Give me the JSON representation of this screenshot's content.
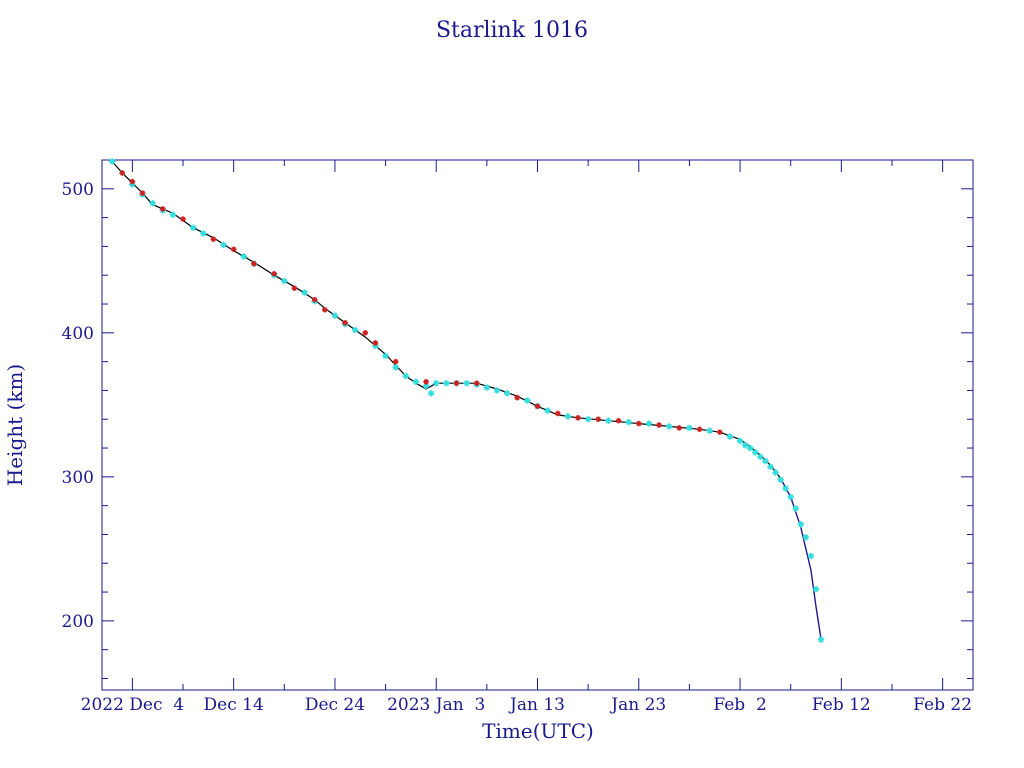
{
  "chart_data": {
    "type": "scatter",
    "title": "Starlink 1016",
    "xlabel": "Time(UTC)",
    "ylabel": "Height (km)",
    "x_axis": "dates",
    "xlim": [
      "2022-12-01",
      "2023-02-25"
    ],
    "ylim": [
      152,
      520
    ],
    "x_tick_labels": [
      {
        "date": "2022-12-04",
        "label": "2022 Dec  4"
      },
      {
        "date": "2022-12-14",
        "label": "Dec 14"
      },
      {
        "date": "2022-12-24",
        "label": "Dec 24"
      },
      {
        "date": "2023-01-03",
        "label": "2023 Jan  3"
      },
      {
        "date": "2023-01-13",
        "label": "Jan 13"
      },
      {
        "date": "2023-01-23",
        "label": "Jan 23"
      },
      {
        "date": "2023-02-02",
        "label": "Feb  2"
      },
      {
        "date": "2023-02-12",
        "label": "Feb 12"
      },
      {
        "date": "2023-02-22",
        "label": "Feb 22"
      }
    ],
    "y_ticks": [
      200,
      300,
      400,
      500
    ],
    "grid": false,
    "legend": "none",
    "colors": {
      "axis": "#1a1a8c",
      "fit_line": "#000000",
      "final_segment": "#1a1a8c",
      "cyan_points": "#33dddd",
      "red_points": "#cc2222"
    },
    "series": [
      {
        "style": "line",
        "points": [
          [
            "2022-12-02",
            519
          ],
          [
            "2022-12-03",
            511
          ],
          [
            "2022-12-04",
            504
          ],
          [
            "2022-12-05",
            497
          ],
          [
            "2022-12-06",
            489
          ],
          [
            "2022-12-08",
            483
          ],
          [
            "2022-12-10",
            473
          ],
          [
            "2022-12-12",
            466
          ],
          [
            "2022-12-14",
            457
          ],
          [
            "2022-12-16",
            449
          ],
          [
            "2022-12-18",
            440
          ],
          [
            "2022-12-20",
            432
          ],
          [
            "2022-12-22",
            423
          ],
          [
            "2022-12-23",
            417
          ],
          [
            "2022-12-25",
            407
          ],
          [
            "2022-12-27",
            397
          ],
          [
            "2022-12-29",
            385
          ],
          [
            "2022-12-31",
            370
          ],
          [
            "2023-01-01",
            365
          ],
          [
            "2023-01-02",
            361
          ],
          [
            "2023-01-03",
            365
          ],
          [
            "2023-01-05",
            365
          ],
          [
            "2023-01-07",
            365
          ],
          [
            "2023-01-09",
            361
          ],
          [
            "2023-01-11",
            356
          ],
          [
            "2023-01-13",
            349
          ],
          [
            "2023-01-15",
            343
          ],
          [
            "2023-01-17",
            341
          ],
          [
            "2023-01-20",
            339
          ],
          [
            "2023-01-23",
            337
          ],
          [
            "2023-01-26",
            335
          ],
          [
            "2023-01-29",
            333
          ],
          [
            "2023-01-31",
            331
          ],
          [
            "2023-02-02",
            326
          ],
          [
            "2023-02-03",
            321
          ],
          [
            "2023-02-04",
            315
          ],
          [
            "2023-02-05",
            308
          ],
          [
            "2023-02-06",
            299
          ],
          [
            "2023-02-07",
            286
          ],
          [
            "2023-02-08",
            265
          ],
          [
            "2023-02-09",
            235
          ],
          [
            "2023-02-09T12",
            210
          ],
          [
            "2023-02-10",
            187
          ]
        ]
      },
      {
        "style": "cyan-points",
        "points": [
          [
            "2022-12-02",
            519
          ],
          [
            "2022-12-04",
            503
          ],
          [
            "2022-12-05",
            496
          ],
          [
            "2022-12-06",
            490
          ],
          [
            "2022-12-07",
            485
          ],
          [
            "2022-12-08",
            482
          ],
          [
            "2022-12-10",
            473
          ],
          [
            "2022-12-11",
            469
          ],
          [
            "2022-12-13",
            461
          ],
          [
            "2022-12-15",
            453
          ],
          [
            "2022-12-16",
            448
          ],
          [
            "2022-12-18",
            440
          ],
          [
            "2022-12-19",
            436
          ],
          [
            "2022-12-21",
            428
          ],
          [
            "2022-12-22",
            422
          ],
          [
            "2022-12-24",
            412
          ],
          [
            "2022-12-25",
            406
          ],
          [
            "2022-12-26",
            402
          ],
          [
            "2022-12-28",
            391
          ],
          [
            "2022-12-29",
            384
          ],
          [
            "2022-12-30",
            376
          ],
          [
            "2022-12-31",
            370
          ],
          [
            "2023-01-01",
            366
          ],
          [
            "2023-01-02",
            363
          ],
          [
            "2023-01-02T12",
            358
          ],
          [
            "2023-01-03",
            365
          ],
          [
            "2023-01-04",
            365
          ],
          [
            "2023-01-05",
            365
          ],
          [
            "2023-01-06",
            365
          ],
          [
            "2023-01-07",
            364
          ],
          [
            "2023-01-08",
            362
          ],
          [
            "2023-01-09",
            360
          ],
          [
            "2023-01-10",
            358
          ],
          [
            "2023-01-12",
            353
          ],
          [
            "2023-01-13",
            349
          ],
          [
            "2023-01-14",
            346
          ],
          [
            "2023-01-16",
            342
          ],
          [
            "2023-01-18",
            340
          ],
          [
            "2023-01-20",
            339
          ],
          [
            "2023-01-22",
            338
          ],
          [
            "2023-01-24",
            337
          ],
          [
            "2023-01-26",
            335
          ],
          [
            "2023-01-28",
            334
          ],
          [
            "2023-01-30",
            332
          ],
          [
            "2023-02-01",
            328
          ],
          [
            "2023-02-02",
            325
          ],
          [
            "2023-02-02T12",
            322
          ],
          [
            "2023-02-03",
            320
          ],
          [
            "2023-02-03T12",
            317
          ],
          [
            "2023-02-04",
            314
          ],
          [
            "2023-02-04T12",
            311
          ],
          [
            "2023-02-05",
            307
          ],
          [
            "2023-02-05T12",
            303
          ],
          [
            "2023-02-06",
            298
          ],
          [
            "2023-02-06T12",
            292
          ],
          [
            "2023-02-07",
            286
          ],
          [
            "2023-02-07T12",
            278
          ],
          [
            "2023-02-08",
            267
          ],
          [
            "2023-02-08T12",
            258
          ],
          [
            "2023-02-09",
            245
          ],
          [
            "2023-02-09T12",
            222
          ],
          [
            "2023-02-10",
            187
          ]
        ]
      },
      {
        "style": "red-points",
        "points": [
          [
            "2022-12-03",
            511
          ],
          [
            "2022-12-04",
            505
          ],
          [
            "2022-12-05",
            497
          ],
          [
            "2022-12-07",
            486
          ],
          [
            "2022-12-09",
            479
          ],
          [
            "2022-12-12",
            465
          ],
          [
            "2022-12-14",
            458
          ],
          [
            "2022-12-16",
            448
          ],
          [
            "2022-12-18",
            441
          ],
          [
            "2022-12-20",
            431
          ],
          [
            "2022-12-22",
            423
          ],
          [
            "2022-12-23",
            416
          ],
          [
            "2022-12-25",
            407
          ],
          [
            "2022-12-27",
            400
          ],
          [
            "2022-12-28",
            393
          ],
          [
            "2022-12-30",
            380
          ],
          [
            "2023-01-02",
            366
          ],
          [
            "2023-01-05",
            365
          ],
          [
            "2023-01-07",
            365
          ],
          [
            "2023-01-11",
            355
          ],
          [
            "2023-01-13",
            349
          ],
          [
            "2023-01-15",
            344
          ],
          [
            "2023-01-17",
            341
          ],
          [
            "2023-01-19",
            340
          ],
          [
            "2023-01-21",
            339
          ],
          [
            "2023-01-23",
            337
          ],
          [
            "2023-01-25",
            336
          ],
          [
            "2023-01-27",
            334
          ],
          [
            "2023-01-29",
            333
          ],
          [
            "2023-01-31",
            331
          ]
        ]
      }
    ]
  }
}
